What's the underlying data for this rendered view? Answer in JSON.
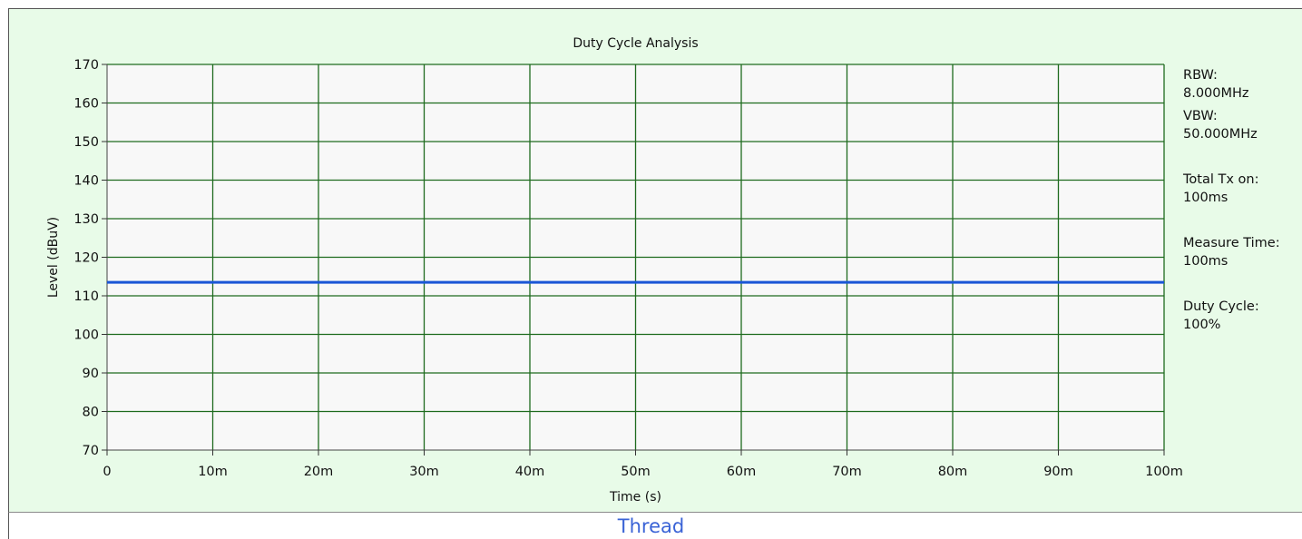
{
  "chart_data": {
    "type": "line",
    "title": "Duty Cycle Analysis",
    "xlabel": "Time (s)",
    "ylabel": "Level (dBuV)",
    "xlim": [
      0,
      0.1
    ],
    "ylim": [
      70,
      170
    ],
    "x_ticks": [
      0,
      0.01,
      0.02,
      0.03,
      0.04,
      0.05,
      0.06,
      0.07,
      0.08,
      0.09,
      0.1
    ],
    "x_tick_labels": [
      "0",
      "10m",
      "20m",
      "30m",
      "40m",
      "50m",
      "60m",
      "70m",
      "80m",
      "90m",
      "100m"
    ],
    "y_ticks": [
      70,
      80,
      90,
      100,
      110,
      120,
      130,
      140,
      150,
      160,
      170
    ],
    "y_tick_labels": [
      "70",
      "80",
      "90",
      "100",
      "110",
      "120",
      "130",
      "140",
      "150",
      "160",
      "170"
    ],
    "grid": true,
    "series": [
      {
        "color": "#1a56d6",
        "x": [
          0,
          0.1
        ],
        "y": [
          113.5,
          113.5
        ]
      }
    ]
  },
  "info": {
    "rbw_label": "RBW:",
    "rbw_value": "8.000MHz",
    "vbw_label": "VBW:",
    "vbw_value": "50.000MHz",
    "tx_label": "Total Tx on:",
    "tx_value": "100ms",
    "measure_label": "Measure Time:",
    "measure_value": "100ms",
    "duty_label": "Duty Cycle:",
    "duty_value": "100%"
  },
  "footer": {
    "label": "Thread"
  },
  "colors": {
    "panel_bg": "#e8fbe8",
    "plot_bg": "#f8f8f8",
    "grid": "#1e6b1e",
    "trace": "#1a56d6",
    "footer_text": "#3a63d6"
  }
}
